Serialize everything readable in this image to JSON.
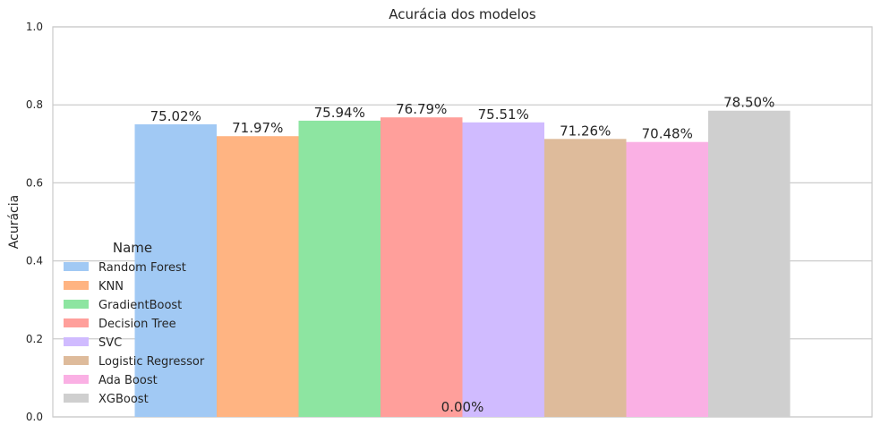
{
  "chart_data": {
    "type": "bar",
    "title": "Acurácia dos modelos",
    "xlabel": "",
    "ylabel": "Acurácia",
    "ylim": [
      0,
      1.0
    ],
    "yticks": [
      "0.0",
      "0.2",
      "0.4",
      "0.6",
      "0.8",
      "1.0"
    ],
    "grid": true,
    "legend": {
      "title": "Name",
      "placement": "lower-left"
    },
    "series": [
      {
        "name": "Random Forest",
        "value": 0.7502,
        "label": "75.02%",
        "color": "#a1c9f4"
      },
      {
        "name": "KNN",
        "value": 0.7197,
        "label": "71.97%",
        "color": "#ffb482"
      },
      {
        "name": "GradientBoost",
        "value": 0.7594,
        "label": "75.94%",
        "color": "#8de5a1"
      },
      {
        "name": "Decision Tree",
        "value": 0.7679,
        "label": "76.79%",
        "color": "#ff9f9b"
      },
      {
        "name": "SVC",
        "value": 0.7551,
        "label": "75.51%",
        "color": "#d0bbff"
      },
      {
        "name": "Logistic Regressor",
        "value": 0.7126,
        "label": "71.26%",
        "color": "#debb9b"
      },
      {
        "name": "Ada Boost",
        "value": 0.7048,
        "label": "70.48%",
        "color": "#fab0e4"
      },
      {
        "name": "XGBoost",
        "value": 0.785,
        "label": "78.50%",
        "color": "#cfcfcf"
      }
    ],
    "zero_label": "0.00%"
  }
}
